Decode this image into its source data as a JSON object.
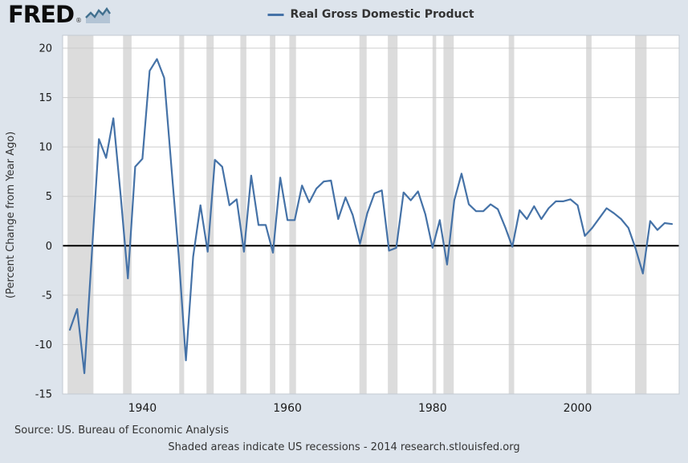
{
  "logo": {
    "text": "FRED",
    "registered_mark": "®"
  },
  "legend": {
    "label": "Real Gross Domestic Product"
  },
  "chart_data": {
    "type": "line",
    "title": "Real Gross Domestic Product",
    "ylabel": "(Percent Change from Year Ago)",
    "xlabel": "",
    "series_name": "Real Gross Domestic Product",
    "xlim": [
      1929,
      2014
    ],
    "ylim": [
      -15,
      21.3
    ],
    "x_ticks": [
      1940,
      1960,
      1980,
      2000
    ],
    "y_ticks": [
      -15,
      -10,
      -5,
      0,
      5,
      10,
      15,
      20
    ],
    "grid": true,
    "legend_position": "top",
    "x": [
      1930,
      1931,
      1932,
      1933,
      1934,
      1935,
      1936,
      1937,
      1938,
      1939,
      1940,
      1941,
      1942,
      1943,
      1944,
      1945,
      1946,
      1947,
      1948,
      1949,
      1950,
      1951,
      1952,
      1953,
      1954,
      1955,
      1956,
      1957,
      1958,
      1959,
      1960,
      1961,
      1962,
      1963,
      1964,
      1965,
      1966,
      1967,
      1968,
      1969,
      1970,
      1971,
      1972,
      1973,
      1974,
      1975,
      1976,
      1977,
      1978,
      1979,
      1980,
      1981,
      1982,
      1983,
      1984,
      1985,
      1986,
      1987,
      1988,
      1989,
      1990,
      1991,
      1992,
      1993,
      1994,
      1995,
      1996,
      1997,
      1998,
      1999,
      2000,
      2001,
      2002,
      2003,
      2004,
      2005,
      2006,
      2007,
      2008,
      2009,
      2010,
      2011,
      2012,
      2013
    ],
    "values": [
      -8.5,
      -6.4,
      -12.9,
      -1.2,
      10.8,
      8.9,
      12.9,
      5.1,
      -3.3,
      8.0,
      8.8,
      17.7,
      18.9,
      17.0,
      8.0,
      -1.0,
      -11.6,
      -1.1,
      4.1,
      -0.6,
      8.7,
      8.0,
      4.1,
      4.7,
      -0.6,
      7.1,
      2.1,
      2.1,
      -0.7,
      6.9,
      2.6,
      2.6,
      6.1,
      4.4,
      5.8,
      6.5,
      6.6,
      2.7,
      4.9,
      3.1,
      0.2,
      3.3,
      5.3,
      5.6,
      -0.5,
      -0.2,
      5.4,
      4.6,
      5.5,
      3.2,
      -0.2,
      2.6,
      -1.9,
      4.6,
      7.3,
      4.2,
      3.5,
      3.5,
      4.2,
      3.7,
      1.9,
      -0.1,
      3.6,
      2.7,
      4.0,
      2.7,
      3.8,
      4.5,
      4.5,
      4.7,
      4.1,
      1.0,
      1.8,
      2.8,
      3.8,
      3.3,
      2.7,
      1.8,
      -0.3,
      -2.8,
      2.5,
      1.6,
      2.3,
      2.2
    ],
    "recessions": [
      [
        1929.67,
        1933.25
      ],
      [
        1937.33,
        1938.5
      ],
      [
        1945.08,
        1945.75
      ],
      [
        1948.83,
        1949.83
      ],
      [
        1953.5,
        1954.33
      ],
      [
        1957.58,
        1958.33
      ],
      [
        1960.25,
        1961.17
      ],
      [
        1969.92,
        1970.92
      ],
      [
        1973.83,
        1975.17
      ],
      [
        1980.0,
        1980.5
      ],
      [
        1981.5,
        1982.92
      ],
      [
        1990.5,
        1991.25
      ],
      [
        2001.17,
        2001.92
      ],
      [
        2007.92,
        2009.5
      ]
    ],
    "colors": {
      "line": "#4572a7",
      "recession": "#dcdcdc",
      "grid": "#cccccc",
      "zero_line": "#000000",
      "plot_bg": "#ffffff",
      "plot_border": "#c3cad2",
      "page_bg": "#dde4ec"
    }
  },
  "footer": {
    "source": "Source: US. Bureau of Economic Analysis",
    "note": "Shaded areas indicate US recessions - 2014 research.stlouisfed.org"
  }
}
